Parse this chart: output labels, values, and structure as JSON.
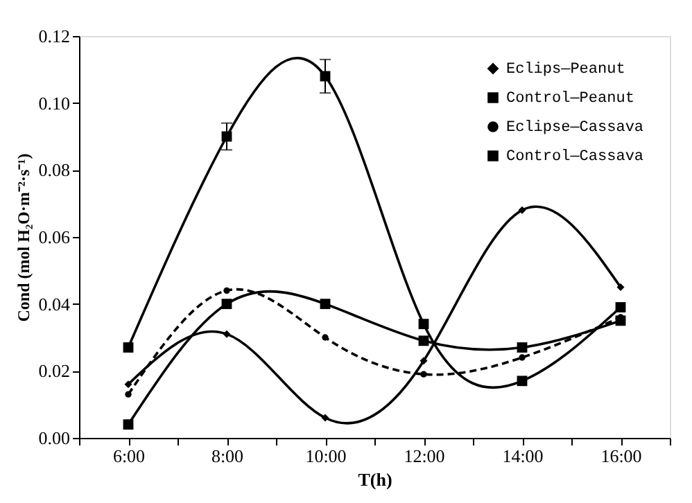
{
  "chart_data": {
    "type": "line",
    "xlabel": "T(h)",
    "ylabel": "Cond (mol H₂O·m⁻²·s⁻¹)",
    "x": [
      6,
      8,
      10,
      12,
      14,
      16
    ],
    "xlim": [
      5,
      17
    ],
    "xticks": [
      {
        "value": 5,
        "label": null
      },
      {
        "value": 6,
        "label": "6:00"
      },
      {
        "value": 7,
        "label": null
      },
      {
        "value": 8,
        "label": "8:00"
      },
      {
        "value": 9,
        "label": null
      },
      {
        "value": 10,
        "label": "10:00"
      },
      {
        "value": 11,
        "label": null
      },
      {
        "value": 12,
        "label": "12:00"
      },
      {
        "value": 13,
        "label": null
      },
      {
        "value": 14,
        "label": "14:00"
      },
      {
        "value": 15,
        "label": null
      },
      {
        "value": 16,
        "label": "16:00"
      },
      {
        "value": 17,
        "label": null
      }
    ],
    "ylim": [
      0,
      0.12
    ],
    "yticks": [
      {
        "value": 0,
        "label": "0.00"
      },
      {
        "value": 0.02,
        "label": "0.02"
      },
      {
        "value": 0.04,
        "label": "0.04"
      },
      {
        "value": 0.06,
        "label": "0.06"
      },
      {
        "value": 0.08,
        "label": "0.08"
      },
      {
        "value": 0.1,
        "label": "0.10"
      },
      {
        "value": 0.12,
        "label": "0.12"
      }
    ],
    "grid": false,
    "legend": "top right",
    "series": [
      {
        "name": "Eclips—Peanut",
        "color": "#000000",
        "marker": "diamond",
        "line_style": "solid",
        "values": [
          0.016,
          0.031,
          0.006,
          0.023,
          0.068,
          0.045
        ]
      },
      {
        "name": "Control—Peanut",
        "color": "#000000",
        "marker": "square",
        "line_style": "solid",
        "values": [
          0.004,
          0.04,
          0.04,
          0.029,
          0.027,
          0.035
        ]
      },
      {
        "name": "Eclipse—Cassava",
        "color": "#000000",
        "marker": "circle",
        "line_style": "dashed",
        "values": [
          0.013,
          0.044,
          0.03,
          0.019,
          0.024,
          0.036
        ]
      },
      {
        "name": "Control—Cassava",
        "color": "#000000",
        "marker": "square",
        "line_style": "solid",
        "values": [
          0.027,
          0.09,
          0.108,
          0.034,
          0.017,
          0.039
        ],
        "errors": [
          null,
          0.004,
          0.005,
          null,
          null,
          null
        ]
      }
    ]
  }
}
